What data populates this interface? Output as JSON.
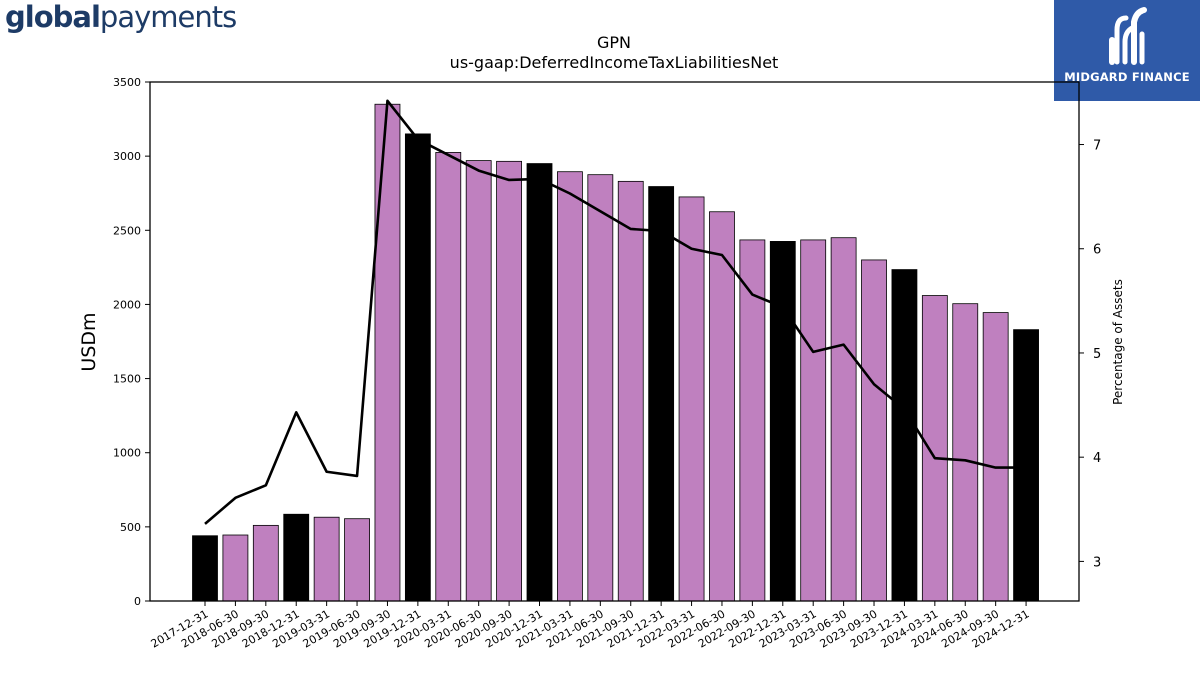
{
  "branding": {
    "left_logo_bold": "global",
    "left_logo_regular": "payments",
    "right_logo_text": "MIDGARD FINANCE"
  },
  "chart_data": {
    "type": "bar",
    "title": "GPN",
    "subtitle": "us-gaap:DeferredIncomeTaxLiabilitiesNet",
    "ylabel": "USDm",
    "y2label": "Percentage of Assets",
    "ylim": [
      0,
      3500
    ],
    "y2lim": [
      2.62,
      7.6
    ],
    "yticks": [
      0,
      500,
      1000,
      1500,
      2000,
      2500,
      3000,
      3500
    ],
    "y2ticks": [
      3,
      4,
      5,
      6,
      7
    ],
    "colors": {
      "annual": "#000000",
      "quarterly": "#bf80bf",
      "line": "#000000"
    },
    "categories": [
      "2017-12-31",
      "2018-06-30",
      "2018-09-30",
      "2018-12-31",
      "2019-03-31",
      "2019-06-30",
      "2019-09-30",
      "2019-12-31",
      "2020-03-31",
      "2020-06-30",
      "2020-09-30",
      "2020-12-31",
      "2021-03-31",
      "2021-06-30",
      "2021-09-30",
      "2021-12-31",
      "2022-03-31",
      "2022-06-30",
      "2022-09-30",
      "2022-12-31",
      "2023-03-31",
      "2023-06-30",
      "2023-09-30",
      "2023-12-31",
      "2024-03-31",
      "2024-06-30",
      "2024-09-30",
      "2024-12-31"
    ],
    "series": [
      {
        "values": [
          440,
          445,
          510,
          585,
          565,
          555,
          3350,
          3150,
          3025,
          2970,
          2965,
          2950,
          2895,
          2875,
          2830,
          2795,
          2725,
          2625,
          2435,
          2425,
          2435,
          2450,
          2300,
          2235,
          2060,
          2005,
          1945,
          1830
        ],
        "annual": [
          true,
          false,
          false,
          true,
          false,
          false,
          false,
          true,
          false,
          false,
          false,
          true,
          false,
          false,
          false,
          true,
          false,
          false,
          false,
          true,
          false,
          false,
          false,
          true,
          false,
          false,
          false,
          true
        ]
      },
      {
        "axis": "right",
        "values": [
          3.36,
          3.61,
          3.73,
          4.43,
          3.86,
          3.82,
          7.42,
          7.05,
          6.9,
          6.75,
          6.66,
          6.67,
          6.53,
          6.36,
          6.19,
          6.17,
          6.0,
          5.94,
          5.56,
          5.44,
          5.01,
          5.08,
          4.7,
          4.46,
          3.99,
          3.97,
          3.9,
          3.9
        ]
      }
    ]
  }
}
